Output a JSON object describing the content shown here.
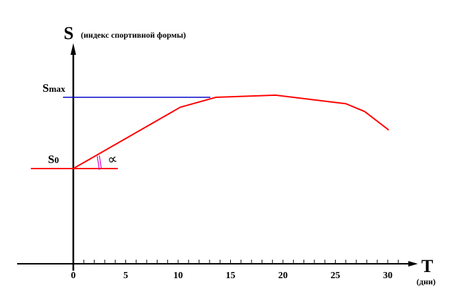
{
  "chart_data": {
    "type": "line",
    "ylabel_symbol": "S",
    "ylabel": "(индекс спортивной формы)",
    "xlabel_symbol": "T",
    "xlabel": "(дни)",
    "x_ticks": [
      "0",
      "5",
      "10",
      "15",
      "20",
      "25",
      "30"
    ],
    "xlim": [
      0,
      31
    ],
    "minor_tick_step": 1,
    "y_levels": {
      "S0": 0,
      "Smax": 1
    },
    "y_level_labels": {
      "s0": "S0",
      "smax_main": "S",
      "smax_sub": "max",
      "s0_main": "S",
      "s0_sub": "0"
    },
    "angle_label": "∝",
    "series": [
      {
        "color": "#ff0000",
        "x": [
          0,
          10.2,
          13.6,
          19.3,
          26,
          27.8,
          30.1
        ],
        "y": [
          0,
          0.86,
          1.0,
          1.03,
          0.91,
          0.8,
          0.54
        ]
      }
    ],
    "colors": {
      "curve": "#ff0000",
      "smax_line": "#0000cc",
      "s0_line": "#ff0000",
      "angle_arc": "#cc00cc",
      "axes": "#000000"
    }
  }
}
